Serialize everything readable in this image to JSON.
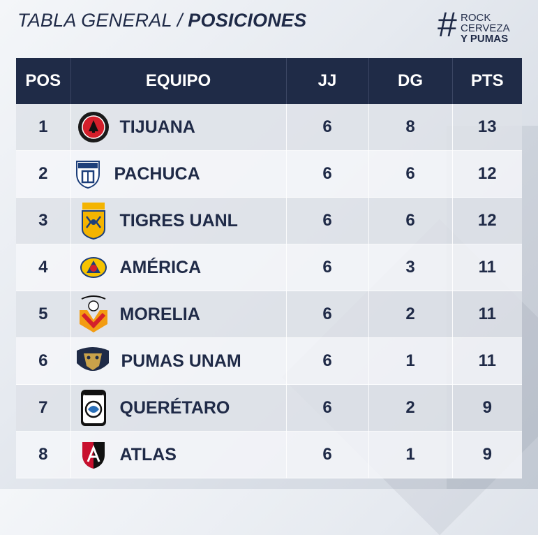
{
  "header": {
    "title_light": "TABLA GENERAL / ",
    "title_bold": "POSICIONES",
    "brand": {
      "hash": "#",
      "line1": "ROCK",
      "line2": "CERVEZA",
      "line3": "Y PUMAS"
    }
  },
  "columns": [
    "POS",
    "EQUIPO",
    "JJ",
    "DG",
    "PTS"
  ],
  "rows": [
    {
      "pos": "1",
      "team": "TIJUANA",
      "jj": "6",
      "dg": "8",
      "pts": "13",
      "logo": "tijuana-crest-icon"
    },
    {
      "pos": "2",
      "team": "PACHUCA",
      "jj": "6",
      "dg": "6",
      "pts": "12",
      "logo": "pachuca-crest-icon"
    },
    {
      "pos": "3",
      "team": "TIGRES UANL",
      "jj": "6",
      "dg": "6",
      "pts": "12",
      "logo": "tigres-crest-icon"
    },
    {
      "pos": "4",
      "team": "AMÉRICA",
      "jj": "6",
      "dg": "3",
      "pts": "11",
      "logo": "america-crest-icon"
    },
    {
      "pos": "5",
      "team": "MORELIA",
      "jj": "6",
      "dg": "2",
      "pts": "11",
      "logo": "morelia-crest-icon"
    },
    {
      "pos": "6",
      "team": "PUMAS UNAM",
      "jj": "6",
      "dg": "1",
      "pts": "11",
      "logo": "pumas-crest-icon"
    },
    {
      "pos": "7",
      "team": "QUERÉTARO",
      "jj": "6",
      "dg": "2",
      "pts": "9",
      "logo": "queretaro-crest-icon"
    },
    {
      "pos": "8",
      "team": "ATLAS",
      "jj": "6",
      "dg": "1",
      "pts": "9",
      "logo": "atlas-crest-icon"
    }
  ],
  "colors": {
    "header_bg": "#1f2b47",
    "text": "#1f2a47",
    "row_odd": "#dee2e8",
    "row_even": "#f4f6f9"
  }
}
